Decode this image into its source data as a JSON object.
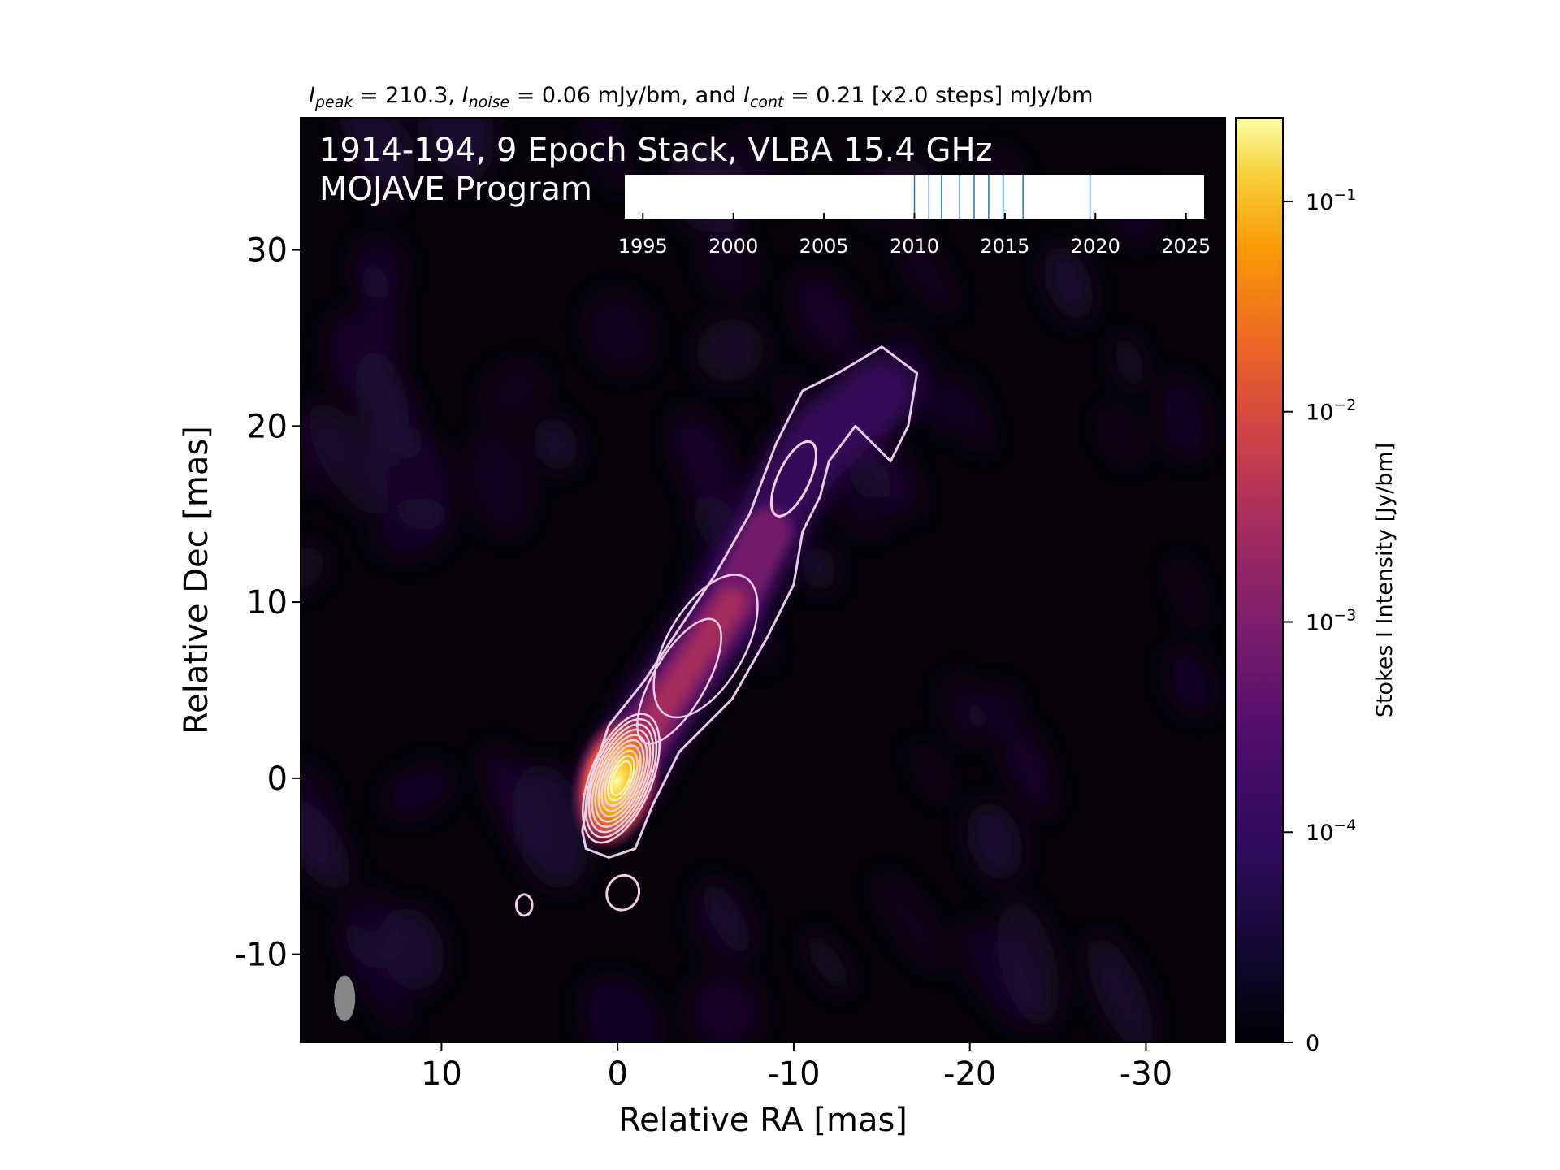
{
  "chart_data": {
    "type": "heatmap",
    "header": {
      "peak_sym": "I",
      "peak_sub": "peak",
      "peak_text": " = 210.3, ",
      "noise_sym": "I",
      "noise_sub": "noise",
      "noise_text": " = 0.06 mJy/bm, and ",
      "cont_sym": "I",
      "cont_sub": "cont",
      "cont_text": " = 0.21 [x2.0 steps] mJy/bm"
    },
    "title_line1": "1914-194, 9 Epoch Stack, VLBA 15.4 GHz",
    "title_line2": "MOJAVE Program",
    "xlabel": "Relative RA [mas]",
    "ylabel": "Relative Dec [mas]",
    "xlim": [
      18,
      -34.5
    ],
    "ylim": [
      -15,
      37.5
    ],
    "x_ticks": [
      {
        "v": 10,
        "label": "10"
      },
      {
        "v": 0,
        "label": "0"
      },
      {
        "v": -10,
        "label": "-10"
      },
      {
        "v": -20,
        "label": "-20"
      },
      {
        "v": -30,
        "label": "-30"
      }
    ],
    "y_ticks": [
      {
        "v": 30,
        "label": "30"
      },
      {
        "v": 20,
        "label": "20"
      },
      {
        "v": 10,
        "label": "10"
      },
      {
        "v": 0,
        "label": "0"
      },
      {
        "v": -10,
        "label": "-10"
      }
    ],
    "jet_spine": [
      [
        0,
        0
      ],
      [
        -1,
        1.5
      ],
      [
        -2.5,
        4
      ],
      [
        -4.5,
        7
      ],
      [
        -6.5,
        10
      ],
      [
        -8.5,
        14
      ],
      [
        -10.5,
        18
      ],
      [
        -12.5,
        20
      ],
      [
        -15,
        22
      ]
    ],
    "contour_levels_count": 11,
    "beam": {
      "ra": 15.5,
      "dec": -12.5,
      "major_mas": 2.6,
      "minor_mas": 1.2
    },
    "colorbar": {
      "label": "Stokes I Intensity [Jy/bm]",
      "colormap": "inferno",
      "ticks": [
        {
          "base": "10",
          "exp": "−1",
          "value": 0.1
        },
        {
          "base": "10",
          "exp": "−2",
          "value": 0.01
        },
        {
          "base": "10",
          "exp": "−3",
          "value": 0.001
        },
        {
          "base": "10",
          "exp": "−4",
          "value": 0.0001
        },
        {
          "base": "0",
          "exp": "",
          "value": 0
        }
      ]
    },
    "epoch_timeline": {
      "range": [
        1994,
        2026
      ],
      "ticks": [
        1995,
        2000,
        2005,
        2010,
        2015,
        2020,
        2025
      ],
      "epochs": [
        2010.0,
        2010.8,
        2011.5,
        2012.5,
        2013.3,
        2014.1,
        2014.9,
        2016.0,
        2019.7
      ],
      "line_color": "#1f77b4"
    }
  }
}
